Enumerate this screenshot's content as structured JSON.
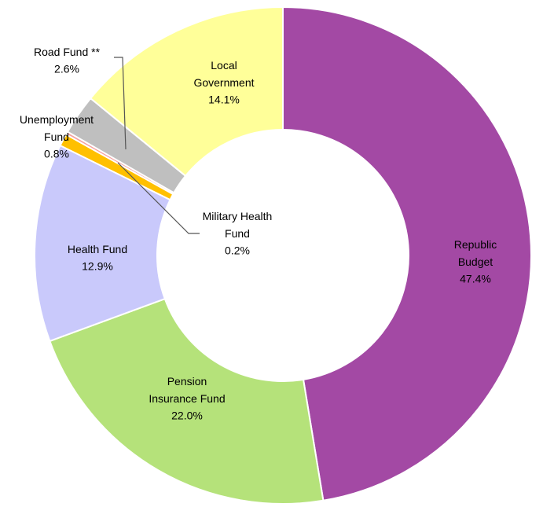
{
  "chart_data": {
    "type": "donut",
    "categories": [
      "Republic Budget",
      "Pension Insurance Fund",
      "Health Fund",
      "Unemployment Fund",
      "Military Health Fund",
      "Road Fund **",
      "Local Government"
    ],
    "values": [
      47.4,
      22.0,
      12.9,
      0.8,
      0.2,
      2.6,
      14.1
    ],
    "value_labels": [
      "47.4%",
      "22.0%",
      "12.9%",
      "0.8%",
      "0.2%",
      "2.6%",
      "14.1%"
    ],
    "colors": [
      "#a349a4",
      "#b5e27a",
      "#c9c9fb",
      "#ffc000",
      "#f4a0a0",
      "#bfbfbf",
      "#ffff99"
    ]
  }
}
